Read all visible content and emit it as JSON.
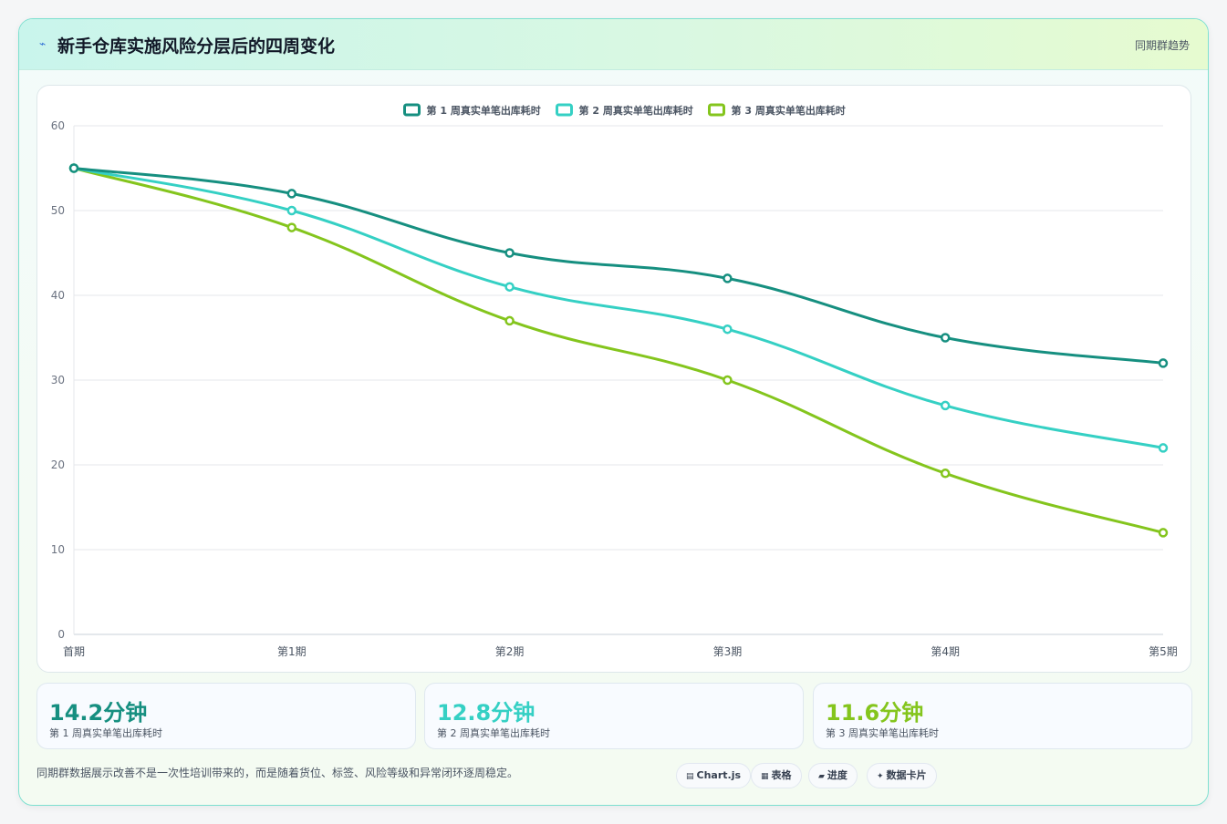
{
  "header": {
    "icon": "lightning-icon",
    "title": "新手仓库实施风险分层后的四周变化",
    "tag": "同期群趋势"
  },
  "colors": {
    "series1": "#168f80",
    "series2": "#35d0c4",
    "series3": "#84c51d"
  },
  "chart_data": {
    "type": "line",
    "categories": [
      "首期",
      "第1期",
      "第2期",
      "第3期",
      "第4期",
      "第5期"
    ],
    "series": [
      {
        "name": "第 1 周真实单笔出库耗时",
        "values": [
          55,
          52,
          45,
          42,
          35,
          32
        ]
      },
      {
        "name": "第 2 周真实单笔出库耗时",
        "values": [
          55,
          50,
          41,
          36,
          27,
          22
        ]
      },
      {
        "name": "第 3 周真实单笔出库耗时",
        "values": [
          55,
          48,
          37,
          30,
          19,
          12
        ]
      }
    ],
    "ylim": [
      0,
      60
    ],
    "yticks": [
      0,
      10,
      20,
      30,
      40,
      50,
      60
    ],
    "grid": true,
    "legend": "top-center",
    "curve": "smooth"
  },
  "stats": [
    {
      "value": "14.2分钟",
      "label": "第 1 周真实单笔出库耗时"
    },
    {
      "value": "12.8分钟",
      "label": "第 2 周真实单笔出库耗时"
    },
    {
      "value": "11.6分钟",
      "label": "第 3 周真实单笔出库耗时"
    }
  ],
  "footnote": "同期群数据展示改善不是一次性培训带来的，而是随着货位、标签、风险等级和异常闭环逐周稳定。",
  "chips": [
    {
      "icon": "chart-icon",
      "label": "Chart.js"
    },
    {
      "icon": "table-icon",
      "label": "表格"
    },
    {
      "icon": "progress-icon",
      "label": "进度"
    },
    {
      "icon": "sparkle-icon",
      "label": "数据卡片"
    }
  ]
}
